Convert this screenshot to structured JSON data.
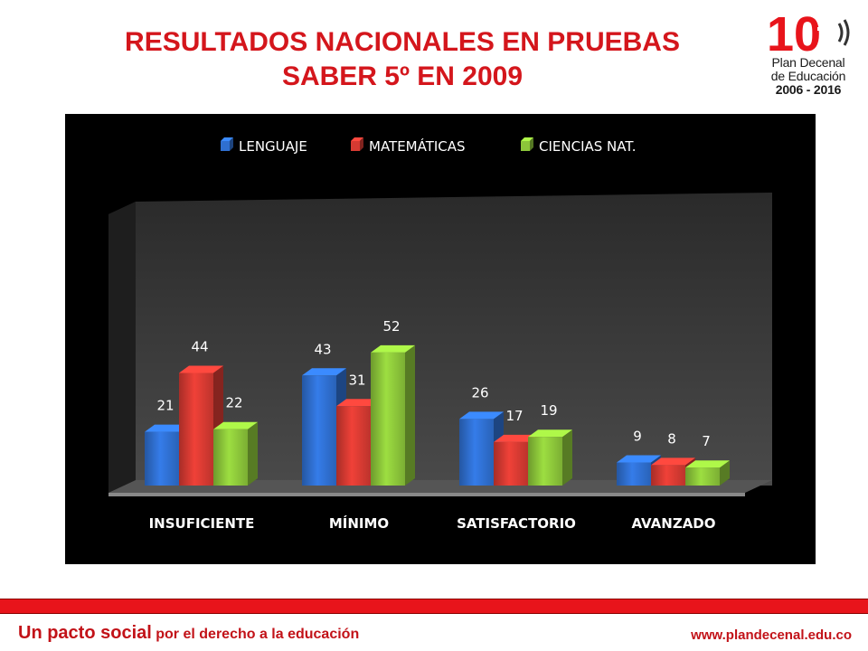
{
  "title": {
    "line1": "RESULTADOS NACIONALES EN PRUEBAS",
    "line2": "SABER 5º EN 2009"
  },
  "logo": {
    "number": "10",
    "line1": "Plan Decenal",
    "line2": "de Educación",
    "line3": "2006 - 2016"
  },
  "footer": {
    "slogan_main": "Un pacto social",
    "slogan_rest": " por el derecho a la educación",
    "url": "www.plandecenal.edu.co"
  },
  "colors": {
    "title": "#d4161c",
    "chart_background": "#000000",
    "lenguaje": "#2f6fd0",
    "matematicas": "#d63a32",
    "ciencias": "#8cc63a",
    "footer_bar": "#e8141b"
  },
  "chart_data": {
    "type": "bar",
    "title": "",
    "xlabel": "",
    "ylabel": "",
    "three_d": true,
    "legend_position": "top",
    "grid": false,
    "ylim": [
      0,
      60
    ],
    "categories": [
      "INSUFICIENTE",
      "MÍNIMO",
      "SATISFACTORIO",
      "AVANZADO"
    ],
    "series": [
      {
        "name": "LENGUAJE",
        "color": "#2f6fd0",
        "values": [
          21,
          43,
          26,
          9
        ]
      },
      {
        "name": "MATEMÁTICAS",
        "color": "#d63a32",
        "values": [
          44,
          31,
          17,
          8
        ]
      },
      {
        "name": "CIENCIAS NAT.",
        "color": "#8cc63a",
        "values": [
          22,
          52,
          19,
          7
        ]
      }
    ]
  }
}
